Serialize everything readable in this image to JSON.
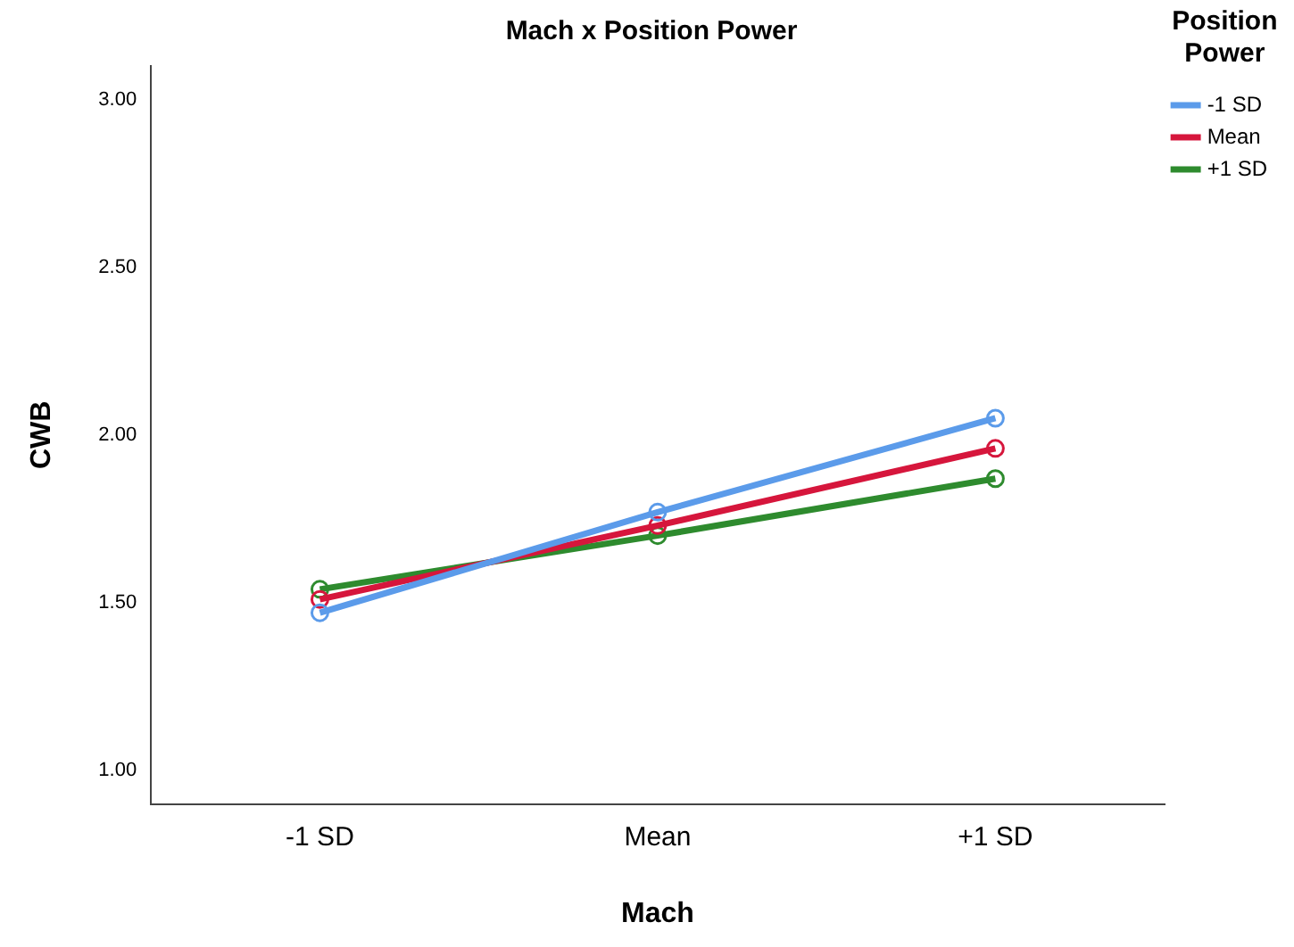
{
  "chart_data": {
    "type": "line",
    "title": "Mach x Position Power",
    "xlabel": "Mach",
    "ylabel": "CWB",
    "legend_title": "Position Power",
    "categories": [
      "-1 SD",
      "Mean",
      "+1 SD"
    ],
    "series": [
      {
        "name": "-1 SD",
        "color": "#5b9bea",
        "values": [
          1.47,
          1.77,
          2.05
        ]
      },
      {
        "name": "Mean",
        "color": "#d6163c",
        "values": [
          1.51,
          1.73,
          1.96
        ]
      },
      {
        "name": "+1 SD",
        "color": "#2e8b2e",
        "values": [
          1.54,
          1.7,
          1.87
        ]
      }
    ],
    "ylim": [
      0.9,
      3.1
    ],
    "yticks": [
      {
        "value": 1,
        "label": "1.00"
      },
      {
        "value": 1.5,
        "label": "1.50"
      },
      {
        "value": 2,
        "label": "2.00"
      },
      {
        "value": 2.5,
        "label": "2.50"
      },
      {
        "value": 3,
        "label": "3.00"
      }
    ],
    "grid": false,
    "legend": "right",
    "marker": "circle",
    "line_style": "solid"
  }
}
